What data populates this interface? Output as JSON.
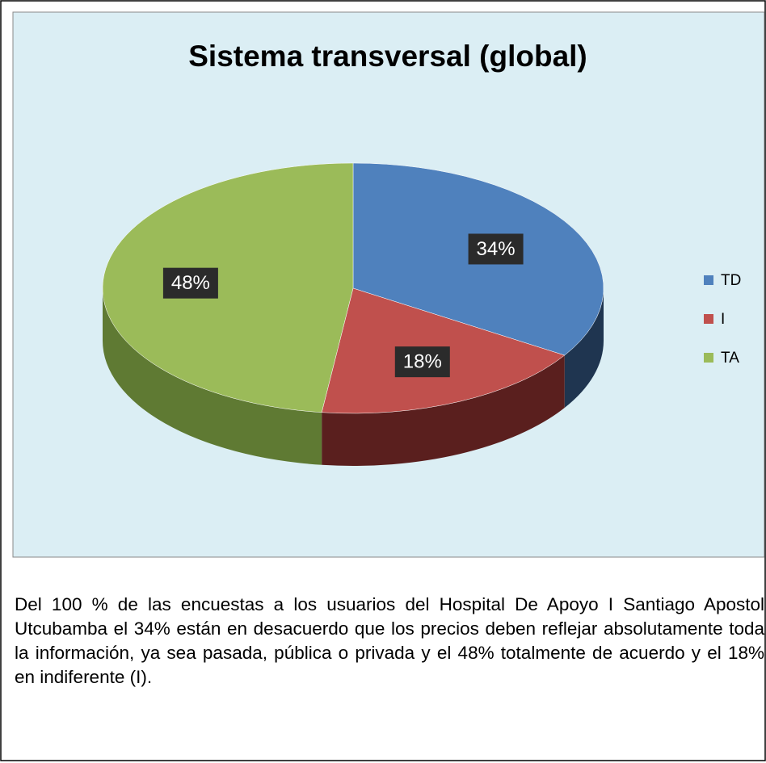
{
  "chart_data": {
    "type": "pie3d",
    "title": "Sistema transversal (global)",
    "categories": [
      "TD",
      "I",
      "TA"
    ],
    "values": [
      34,
      18,
      48
    ],
    "value_labels": [
      "34%",
      "18%",
      "48%"
    ],
    "colors": [
      "#4f81bd",
      "#c0504d",
      "#9bbb59"
    ],
    "side_colors": [
      "#1f3550",
      "#5a1f1e",
      "#5f7a33"
    ],
    "legend": "right"
  },
  "text": "Del 100 % de las encuestas a los usuarios del Hospital De Apoyo I Santiago Apostol Utcubamba el 34% están en desacuerdo que los precios deben reflejar absolutamente toda la información, ya sea pasada, pública o privada y el 48% totalmente de acuerdo y el 18% en indiferente (I)."
}
